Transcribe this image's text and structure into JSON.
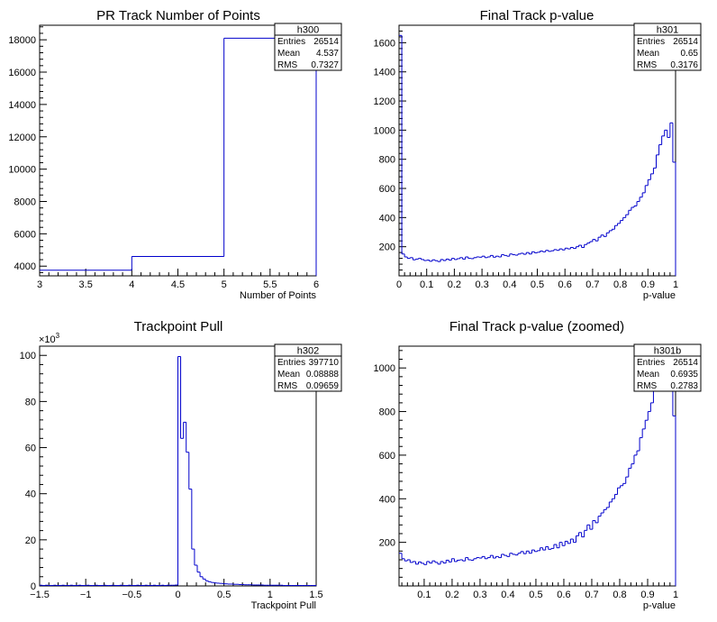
{
  "chart_data": [
    {
      "type": "histogram",
      "id": "h300",
      "title": "PR Track Number of Points",
      "xlabel": "Number of Points",
      "ylabel": "",
      "xlim": [
        3,
        6
      ],
      "ylim": [
        3400,
        18900
      ],
      "xticks": [
        3,
        3.5,
        4,
        4.5,
        5,
        5.5,
        6
      ],
      "xtick_labels": [
        "3",
        "3.5",
        "4",
        "4.5",
        "5",
        "5.5",
        "6"
      ],
      "yticks": [
        4000,
        6000,
        8000,
        10000,
        12000,
        14000,
        16000,
        18000
      ],
      "ytick_labels": [
        "4000",
        "6000",
        "8000",
        "10000",
        "12000",
        "14000",
        "16000",
        "18000"
      ],
      "bin_edges": [
        3,
        4,
        5,
        6
      ],
      "values": [
        3750,
        4600,
        18100
      ],
      "stats": {
        "name": "h300",
        "rows": [
          [
            "Entries",
            "26514"
          ],
          [
            "Mean",
            "4.537"
          ],
          [
            "RMS",
            "0.7327"
          ]
        ]
      }
    },
    {
      "type": "histogram",
      "id": "h301",
      "title": "Final Track p-value",
      "xlabel": "p-value",
      "ylabel": "",
      "xlim": [
        0,
        1
      ],
      "ylim": [
        0,
        1720
      ],
      "xticks": [
        0,
        0.1,
        0.2,
        0.3,
        0.4,
        0.5,
        0.6,
        0.7,
        0.8,
        0.9,
        1
      ],
      "xtick_labels": [
        "0",
        "0.1",
        "0.2",
        "0.3",
        "0.4",
        "0.5",
        "0.6",
        "0.7",
        "0.8",
        "0.9",
        "1"
      ],
      "yticks": [
        200,
        400,
        600,
        800,
        1000,
        1200,
        1400,
        1600
      ],
      "ytick_labels": [
        "200",
        "400",
        "600",
        "800",
        "1000",
        "1200",
        "1400",
        "1600"
      ],
      "bin_edges_range": [
        0,
        1
      ],
      "values": [
        1650,
        150,
        130,
        120,
        125,
        110,
        115,
        120,
        112,
        105,
        108,
        100,
        110,
        104,
        98,
        112,
        105,
        115,
        108,
        120,
        112,
        118,
        125,
        115,
        130,
        120,
        118,
        125,
        130,
        128,
        135,
        125,
        130,
        140,
        128,
        135,
        130,
        145,
        140,
        135,
        150,
        145,
        142,
        150,
        155,
        148,
        160,
        150,
        165,
        158,
        162,
        170,
        165,
        175,
        168,
        172,
        180,
        175,
        185,
        178,
        190,
        185,
        195,
        188,
        200,
        210,
        195,
        215,
        225,
        235,
        250,
        240,
        265,
        280,
        270,
        295,
        310,
        320,
        345,
        360,
        380,
        400,
        420,
        450,
        470,
        480,
        510,
        540,
        570,
        620,
        660,
        700,
        740,
        830,
        900,
        960,
        1000,
        950,
        1050,
        780
      ],
      "stats": {
        "name": "h301",
        "rows": [
          [
            "Entries",
            "26514"
          ],
          [
            "Mean",
            "0.65"
          ],
          [
            "RMS",
            "0.3176"
          ]
        ]
      }
    },
    {
      "type": "histogram",
      "id": "h302",
      "title": "Trackpoint Pull",
      "xlabel": "Trackpoint Pull",
      "ylabel": "",
      "multiplier_label": "×10",
      "multiplier_exp": "3",
      "xlim": [
        -1.5,
        1.5
      ],
      "ylim": [
        0,
        104
      ],
      "xticks": [
        -1.5,
        -1,
        -0.5,
        0,
        0.5,
        1,
        1.5
      ],
      "xtick_labels": [
        "−1.5",
        "−1",
        "−0.5",
        "0",
        "0.5",
        "1",
        "1.5"
      ],
      "yticks": [
        0,
        20,
        40,
        60,
        80,
        100
      ],
      "ytick_labels": [
        "0",
        "20",
        "40",
        "60",
        "80",
        "100"
      ],
      "bin_edges_range": [
        -1.5,
        1.5
      ],
      "values": [
        0.3,
        0.2,
        0.3,
        0.2,
        0.2,
        0.3,
        0.2,
        0.2,
        0.3,
        0.2,
        0.2,
        0.3,
        0.2,
        0.2,
        0.3,
        0.2,
        0.2,
        0.3,
        0.2,
        0.2,
        0.3,
        0.2,
        0.2,
        0.3,
        0.2,
        0.2,
        0.3,
        0.2,
        0.2,
        0.3,
        0.2,
        0.2,
        0.3,
        0.2,
        0.2,
        0.3,
        0.2,
        0.2,
        0.3,
        0.2,
        0.2,
        0.3,
        0.2,
        0.2,
        0.3,
        0.2,
        0.3,
        0.3,
        0.3,
        0.4,
        99.5,
        64,
        71,
        58,
        42,
        16,
        9,
        6,
        4,
        3,
        2.2,
        1.8,
        1.5,
        1.3,
        1.2,
        1.1,
        1.0,
        0.9,
        0.8,
        0.8,
        0.7,
        0.7,
        0.6,
        0.6,
        0.5,
        0.5,
        0.5,
        0.4,
        0.4,
        0.4,
        0.4,
        0.3,
        0.3,
        0.3,
        0.3,
        0.3,
        0.3,
        0.3,
        0.2,
        0.2,
        0.2,
        0.2,
        0.2,
        0.2,
        0.2,
        0.2,
        0.2,
        0.2,
        0.2,
        0.2
      ],
      "stats": {
        "name": "h302",
        "rows": [
          [
            "Entries",
            "397710"
          ],
          [
            "Mean",
            "0.08888"
          ],
          [
            "RMS",
            "0.09659"
          ]
        ]
      }
    },
    {
      "type": "histogram",
      "id": "h301b",
      "title": "Final Track p-value (zoomed)",
      "xlabel": "p-value",
      "ylabel": "",
      "xlim": [
        0.01,
        1
      ],
      "ylim": [
        0,
        1100
      ],
      "xticks": [
        0.1,
        0.2,
        0.3,
        0.4,
        0.5,
        0.6,
        0.7,
        0.8,
        0.9,
        1
      ],
      "xtick_labels": [
        "0.1",
        "0.2",
        "0.3",
        "0.4",
        "0.5",
        "0.6",
        "0.7",
        "0.8",
        "0.9",
        "1"
      ],
      "yticks": [
        200,
        400,
        600,
        800,
        1000
      ],
      "ytick_labels": [
        "200",
        "400",
        "600",
        "800",
        "1000"
      ],
      "bin_edges_range": [
        0.01,
        1
      ],
      "values": [
        150,
        125,
        115,
        120,
        108,
        112,
        100,
        110,
        104,
        98,
        112,
        105,
        115,
        108,
        100,
        112,
        105,
        118,
        110,
        125,
        112,
        118,
        120,
        115,
        130,
        120,
        118,
        125,
        130,
        128,
        135,
        125,
        130,
        140,
        128,
        135,
        130,
        145,
        140,
        135,
        150,
        145,
        142,
        150,
        158,
        148,
        160,
        150,
        165,
        158,
        162,
        175,
        165,
        180,
        168,
        172,
        190,
        175,
        200,
        185,
        205,
        195,
        215,
        200,
        230,
        245,
        225,
        255,
        280,
        260,
        300,
        290,
        320,
        335,
        350,
        360,
        385,
        400,
        420,
        450,
        460,
        470,
        500,
        540,
        560,
        600,
        620,
        680,
        720,
        760,
        800,
        840,
        900,
        960,
        1000,
        1020,
        1060,
        980,
        960,
        780
      ],
      "stats": {
        "name": "h301b",
        "rows": [
          [
            "Entries",
            "26514"
          ],
          [
            "Mean",
            "0.6935"
          ],
          [
            "RMS",
            "0.2783"
          ]
        ]
      }
    }
  ]
}
